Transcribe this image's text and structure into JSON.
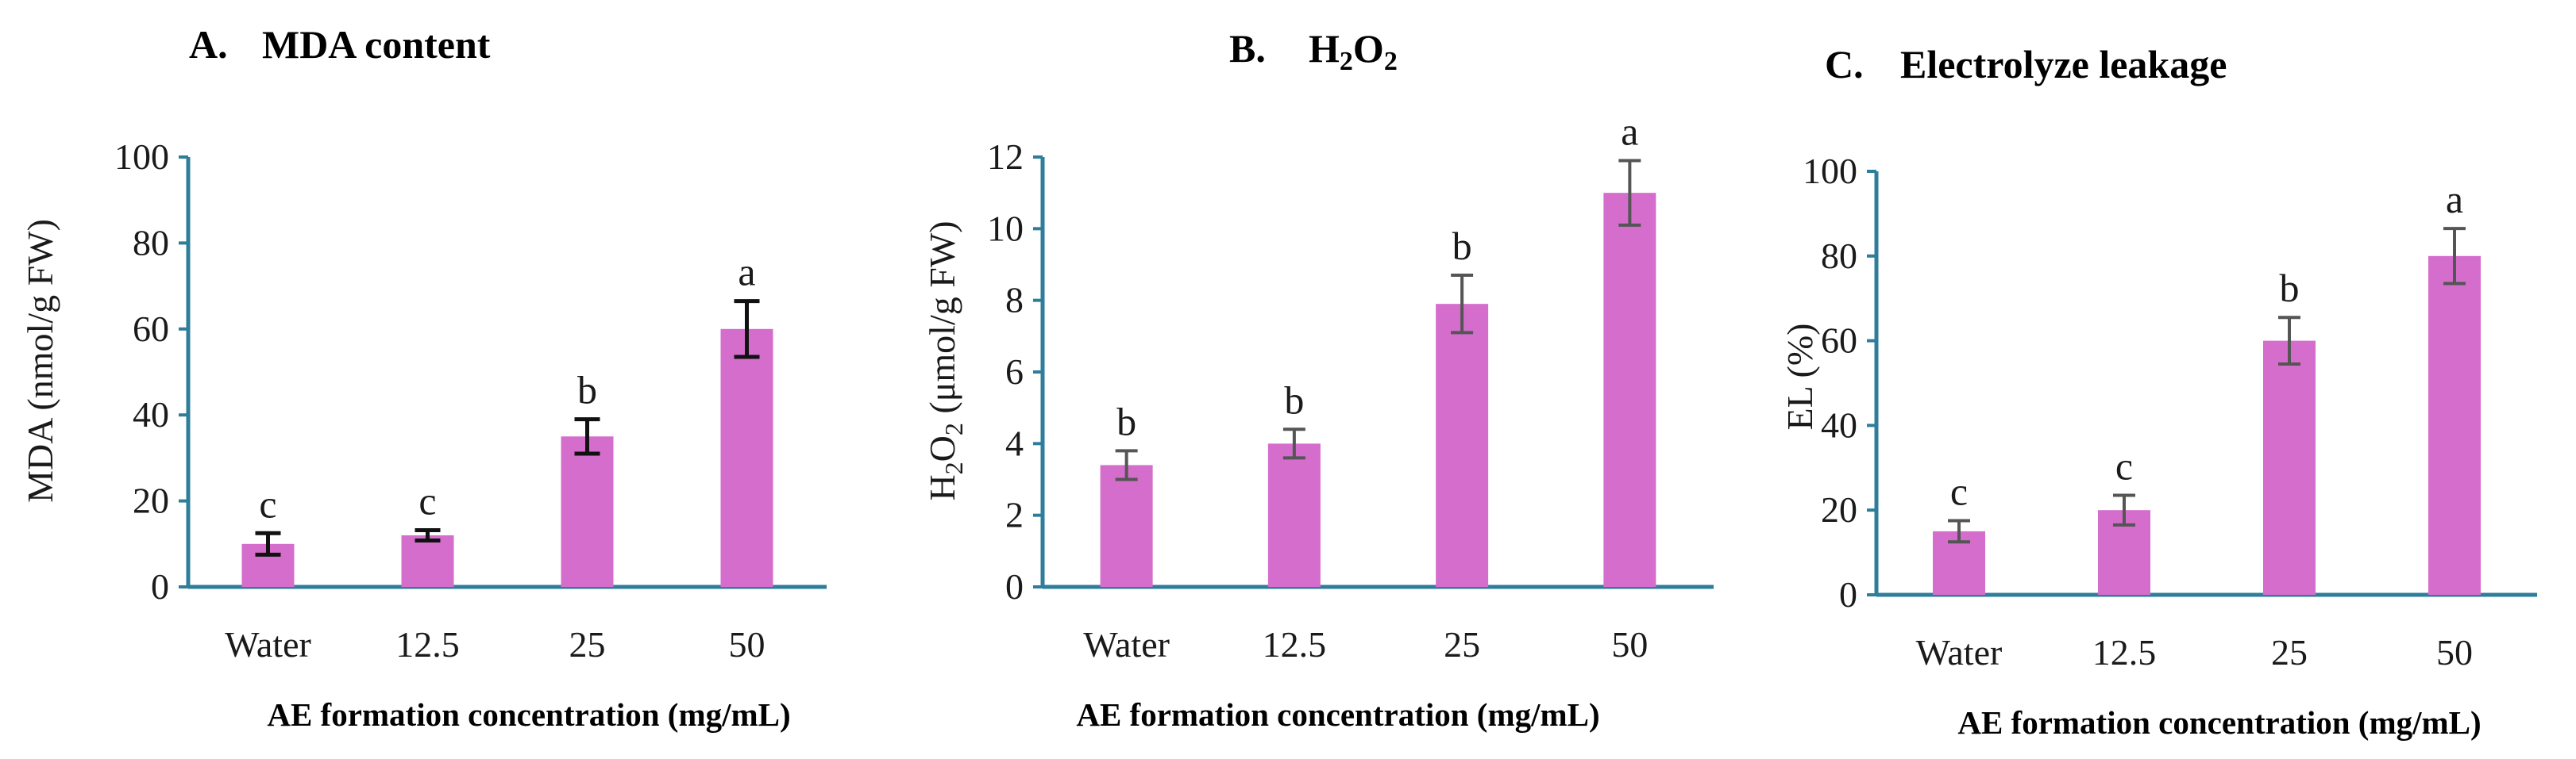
{
  "chart_data": [
    {
      "type": "bar",
      "panel_letter": "A.",
      "title": "MDA content",
      "categories": [
        "Water",
        "12.5",
        "25",
        "50"
      ],
      "values": [
        10,
        12,
        35,
        60
      ],
      "errors": [
        2.5,
        1.2,
        4,
        6.5
      ],
      "significance": [
        "c",
        "c",
        "b",
        "a"
      ],
      "ylim": [
        0,
        100
      ],
      "yticks": [
        "0",
        "20",
        "40",
        "60",
        "80",
        "100"
      ],
      "ylabel": "MDA (nmol/g FW)",
      "xlabel": "AE formation concentration (mg/mL)",
      "bar_color": "#d56dcc",
      "axis_color": "#2e7d9a"
    },
    {
      "type": "bar",
      "panel_letter": "B.",
      "title": "H2O2",
      "categories": [
        "Water",
        "12.5",
        "25",
        "50"
      ],
      "values": [
        3.4,
        4.0,
        7.9,
        11.0
      ],
      "errors": [
        0.4,
        0.4,
        0.8,
        0.9
      ],
      "significance": [
        "b",
        "b",
        "b",
        "a"
      ],
      "ylim": [
        0,
        12
      ],
      "yticks": [
        "0",
        "2",
        "4",
        "6",
        "8",
        "10",
        "12"
      ],
      "ylabel": "H2O2 (μmol/g FW)",
      "xlabel": "AE formation concentration (mg/mL)",
      "bar_color": "#d56dcc",
      "axis_color": "#2e7d9a"
    },
    {
      "type": "bar",
      "panel_letter": "C.",
      "title": "Electrolyze leakage",
      "categories": [
        "Water",
        "12.5",
        "25",
        "50"
      ],
      "values": [
        15,
        20,
        60,
        80
      ],
      "errors": [
        2.5,
        3.5,
        5.5,
        6.5
      ],
      "significance": [
        "c",
        "c",
        "b",
        "a"
      ],
      "ylim": [
        0,
        100
      ],
      "yticks": [
        "0",
        "20",
        "40",
        "60",
        "80",
        "100"
      ],
      "ylabel": "EL (%)",
      "xlabel": "AE formation concentration (mg/mL)",
      "bar_color": "#d56dcc",
      "axis_color": "#2e7d9a"
    }
  ]
}
